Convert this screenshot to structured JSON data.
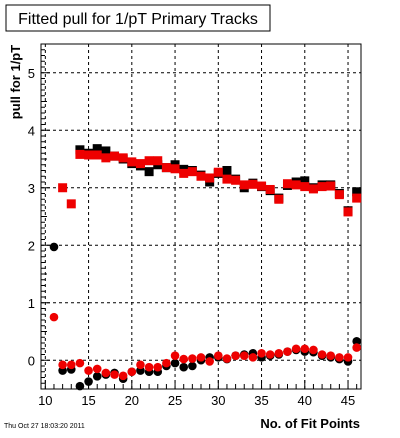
{
  "chart_data": {
    "type": "scatter",
    "title": "Fitted pull for 1/pT Primary Tracks",
    "xlabel": "No. of Fit Points",
    "ylabel": "pull for 1/pT",
    "xlim": [
      9.5,
      46.5
    ],
    "ylim": [
      -0.5,
      5.5
    ],
    "x_ticks": [
      10,
      15,
      20,
      25,
      30,
      35,
      40,
      45
    ],
    "y_ticks": [
      0,
      1,
      2,
      3,
      4,
      5
    ],
    "grid": true,
    "legend": "none",
    "colors": {
      "black": "#000000",
      "red": "#ee0000"
    },
    "series": [
      {
        "marker": "square",
        "color": "black",
        "x": [
          14,
          15,
          16,
          17,
          18,
          19,
          20,
          21,
          22,
          23,
          24,
          25,
          26,
          27,
          28,
          29,
          30,
          31,
          32,
          33,
          34,
          35,
          36,
          37,
          38,
          39,
          40,
          41,
          42,
          43,
          44,
          45,
          46
        ],
        "y": [
          3.66,
          3.6,
          3.68,
          3.64,
          3.55,
          3.5,
          3.42,
          3.38,
          3.28,
          3.4,
          3.35,
          3.4,
          3.32,
          3.3,
          3.22,
          3.1,
          3.25,
          3.3,
          3.15,
          3.0,
          3.08,
          3.02,
          2.95,
          2.82,
          3.04,
          3.1,
          3.12,
          3.0,
          3.05,
          3.05,
          2.9,
          2.6,
          2.93
        ]
      },
      {
        "marker": "square",
        "color": "red",
        "x": [
          12,
          13,
          14,
          15,
          16,
          17,
          18,
          19,
          20,
          21,
          22,
          23,
          24,
          25,
          26,
          27,
          28,
          29,
          30,
          31,
          32,
          33,
          34,
          35,
          36,
          37,
          38,
          39,
          40,
          41,
          42,
          43,
          44,
          45,
          46
        ],
        "y": [
          3.0,
          2.72,
          3.58,
          3.57,
          3.57,
          3.52,
          3.55,
          3.52,
          3.45,
          3.42,
          3.47,
          3.47,
          3.35,
          3.33,
          3.25,
          3.28,
          3.2,
          3.17,
          3.27,
          3.15,
          3.13,
          3.05,
          3.06,
          3.03,
          2.97,
          2.8,
          3.07,
          3.05,
          3.02,
          2.98,
          3.02,
          3.03,
          2.88,
          2.58,
          2.82
        ]
      },
      {
        "marker": "circle",
        "color": "black",
        "x": [
          11,
          12,
          13,
          14,
          15,
          16,
          17,
          18,
          19,
          20,
          21,
          22,
          23,
          24,
          25,
          26,
          27,
          28,
          29,
          30,
          31,
          32,
          33,
          34,
          35,
          36,
          37,
          38,
          39,
          40,
          41,
          42,
          43,
          44,
          45,
          46
        ],
        "y": [
          1.97,
          -0.18,
          -0.16,
          -0.45,
          -0.37,
          -0.28,
          -0.25,
          -0.22,
          -0.32,
          -0.2,
          -0.18,
          -0.2,
          -0.2,
          -0.1,
          -0.05,
          -0.12,
          -0.1,
          0.0,
          0.05,
          0.05,
          0.02,
          0.08,
          0.1,
          0.12,
          0.05,
          0.08,
          0.1,
          0.15,
          0.18,
          0.15,
          0.14,
          0.08,
          0.05,
          0.02,
          -0.02,
          0.33
        ]
      },
      {
        "marker": "diamond",
        "color": "red",
        "x": [
          11,
          12,
          13,
          14,
          15,
          16,
          17,
          18,
          19,
          20,
          21,
          22,
          23,
          24,
          25,
          26,
          27,
          28,
          29,
          30,
          31,
          32,
          33,
          34,
          35,
          36,
          37,
          38,
          39,
          40,
          41,
          42,
          43,
          44,
          45,
          46
        ],
        "y": [
          0.75,
          -0.08,
          -0.08,
          -0.05,
          -0.18,
          -0.15,
          -0.22,
          -0.25,
          -0.27,
          -0.2,
          -0.08,
          -0.12,
          -0.12,
          -0.05,
          0.08,
          0.02,
          0.03,
          0.05,
          -0.02,
          0.08,
          0.03,
          0.08,
          0.08,
          0.05,
          0.12,
          0.1,
          0.12,
          0.15,
          0.2,
          0.2,
          0.18,
          0.1,
          0.08,
          0.05,
          0.05,
          0.22
        ]
      }
    ]
  },
  "footer": {
    "timestamp": "Thu Oct 27 18:03:20 2011"
  }
}
